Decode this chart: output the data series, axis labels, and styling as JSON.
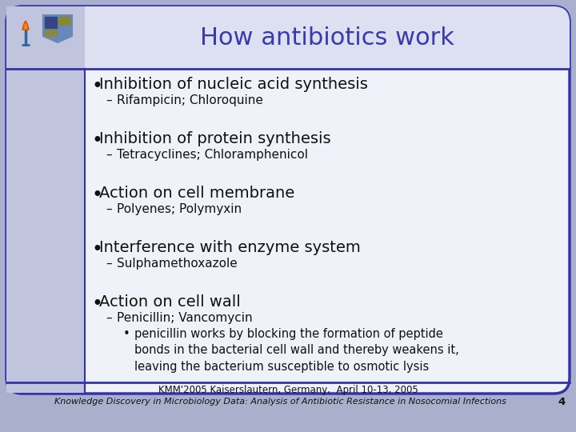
{
  "title": "How antibiotics work",
  "title_color": "#3a3aaa",
  "title_fontsize": 22,
  "background_outer": "#aab0cc",
  "background_inner": "#f0f2fa",
  "header_bg": "#dde0f0",
  "border_color": "#3333aa",
  "left_bar_color": "#3333aa",
  "bullet_items": [
    {
      "bullet": "Inhibition of nucleic acid synthesis",
      "sub": "Rifampicin; Chloroquine",
      "sub2": null
    },
    {
      "bullet": "Inhibition of protein synthesis",
      "sub": "Tetracyclines; Chloramphenicol",
      "sub2": null
    },
    {
      "bullet": "Action on cell membrane",
      "sub": "Polyenes; Polymyxin",
      "sub2": null
    },
    {
      "bullet": "Interference with enzyme system",
      "sub": "Sulphamethoxazole",
      "sub2": null
    },
    {
      "bullet": "Action on cell wall",
      "sub": "Penicillin; Vancomycin",
      "sub2": "penicillin works by blocking the formation of peptide\nbonds in the bacterial cell wall and thereby weakens it,\nleaving the bacterium susceptible to osmotic lysis"
    }
  ],
  "bullet_fontsize": 14,
  "sub_fontsize": 11,
  "sub2_fontsize": 10.5,
  "footer_line1": "KMM'2005 Kaiserslautern, Germany,  April 10-13, 2005",
  "footer_line2": "Knowledge Discovery in Microbiology Data: Analysis of Antibiotic Resistance in Nosocomial Infections",
  "footer_fontsize": 8.5,
  "page_number": "4",
  "divider_color": "#3333aa",
  "left_panel_color": "#c0c4dc"
}
